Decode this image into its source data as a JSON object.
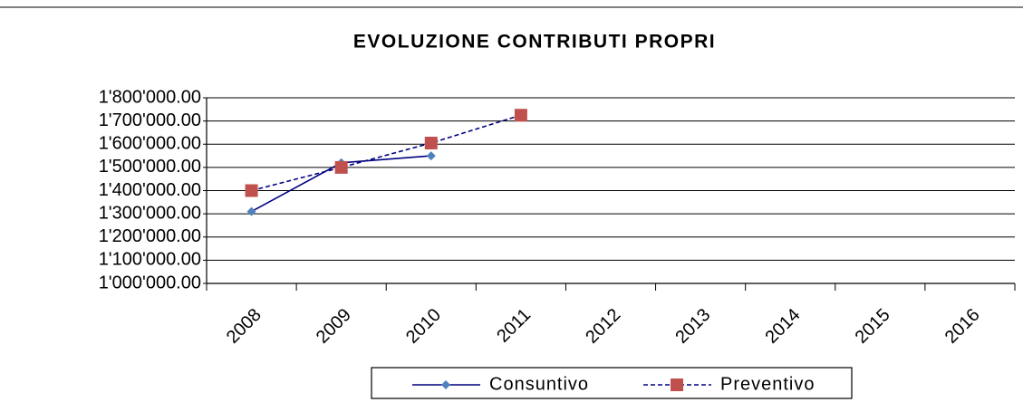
{
  "chart_data": {
    "type": "line",
    "title": "EVOLUZIONE CONTRIBUTI PROPRI",
    "categories": [
      "2008",
      "2009",
      "2010",
      "2011",
      "2012",
      "2013",
      "2014",
      "2015",
      "2016"
    ],
    "series": [
      {
        "name": "Consuntivo",
        "color": "#000080",
        "marker_color": "#4f81bd",
        "marker": "diamond",
        "dash": false,
        "values": [
          1310000,
          1520000,
          1550000,
          null,
          null,
          null,
          null,
          null,
          null
        ]
      },
      {
        "name": "Preventivo",
        "color": "#000080",
        "marker_color": "#c0504d",
        "marker": "square",
        "dash": true,
        "values": [
          1400000,
          1500000,
          1605000,
          1725000,
          null,
          null,
          null,
          null,
          null
        ]
      }
    ],
    "ylim": [
      1000000,
      1800000
    ],
    "yticks": [
      {
        "value": 1000000,
        "label": "1'000'000.00"
      },
      {
        "value": 1100000,
        "label": "1'100'000.00"
      },
      {
        "value": 1200000,
        "label": "1'200'000.00"
      },
      {
        "value": 1300000,
        "label": "1'300'000.00"
      },
      {
        "value": 1400000,
        "label": "1'400'000.00"
      },
      {
        "value": 1500000,
        "label": "1'500'000.00"
      },
      {
        "value": 1600000,
        "label": "1'600'000.00"
      },
      {
        "value": 1700000,
        "label": "1'700'000.00"
      },
      {
        "value": 1800000,
        "label": "1'800'000.00"
      }
    ],
    "grid": true,
    "legend": "bottom"
  }
}
